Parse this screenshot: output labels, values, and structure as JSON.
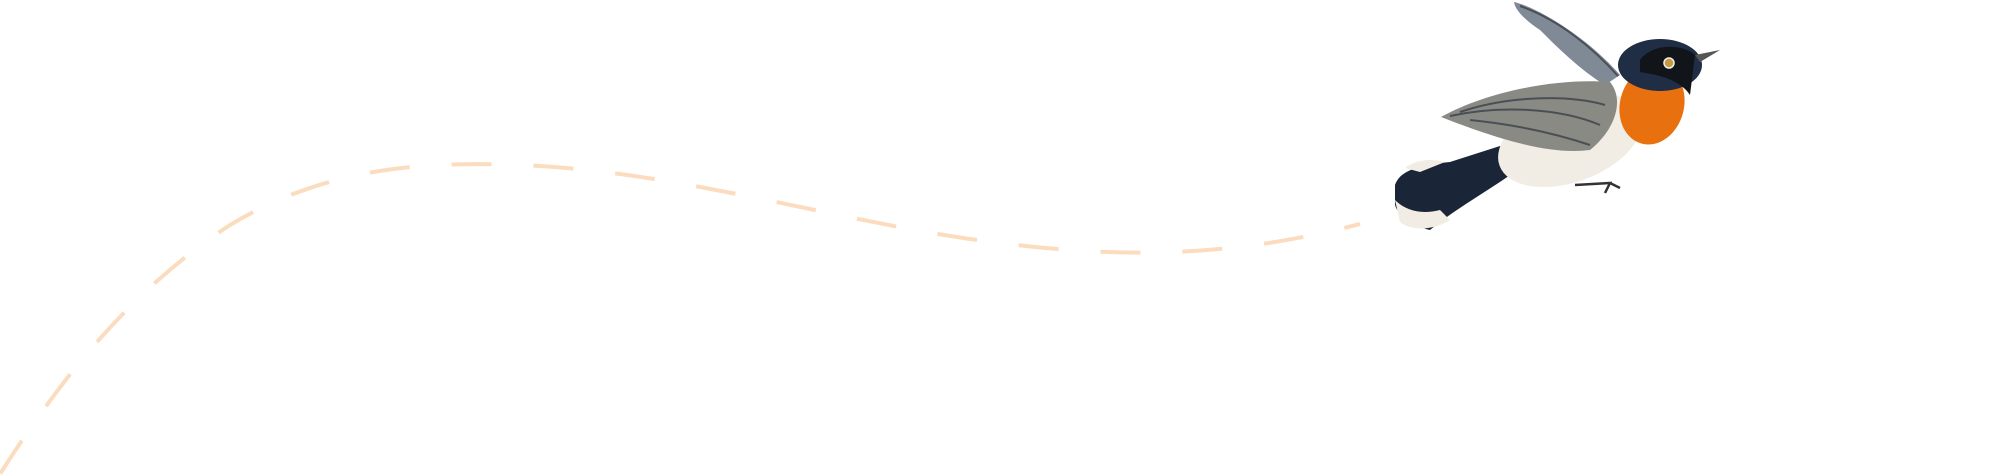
{
  "colors": {
    "background": "#ffffff",
    "flight_path": "#fcdcbf",
    "bird_throat": "#e8700f",
    "bird_head": "#1f2d45",
    "bird_wing": "#8a8a84",
    "bird_belly": "#f1ede4",
    "bird_tail": "#1a2538"
  },
  "icons": {
    "bird": "bird-illustration",
    "path": "dashed-flight-path"
  }
}
